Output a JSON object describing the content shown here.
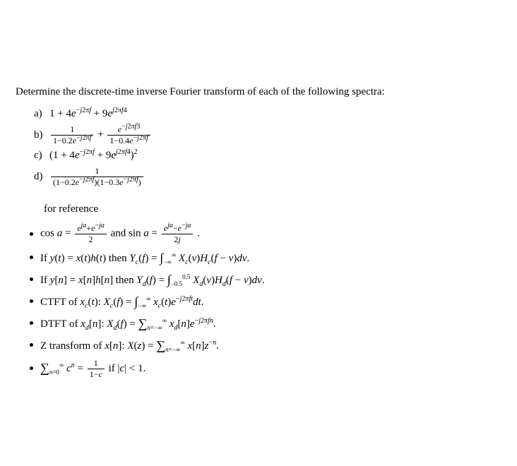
{
  "intro": "Determine the discrete-time inverse Fourier transform of each of the following spectra:",
  "problems": {
    "a": {
      "label": "a)",
      "expr_html": "1 + 4<i>e</i><sup>−<i>j</i>2π<i>f</i></sup> + 9<i>e</i><sup><i>j</i>2π<i>f</i>4</sup>"
    },
    "b": {
      "label": "b)",
      "frac1_num": "1",
      "frac1_den": "1−0.2<i>e</i><sup>−<i>j</i>2π<i>f</i></sup>",
      "plus": " + ",
      "frac2_num": "<i>e</i><sup>−<i>j</i>2π<i>f</i>3</sup>",
      "frac2_den": "1−0.4<i>e</i><sup>−<i>j</i>2π<i>f</i></sup>"
    },
    "c": {
      "label": "c)",
      "expr_html": "(1 + 4<i>e</i><sup>−<i>j</i>2π<i>f</i></sup> + 9<i>e</i><sup><i>j</i>2π<i>f</i>4</sup>)<sup>2</sup>"
    },
    "d": {
      "label": "d)",
      "frac_num": "1",
      "frac_den": "(1−0.2<i>e</i><sup>−<i>j</i>2π<i>f</i></sup>)(1−0.3<i>e</i><sup>−<i>j</i>2π<i>f</i></sup>)"
    }
  },
  "reference_header": "for reference",
  "ref": {
    "r1_a": "cos <i>a</i> = ",
    "r1_f1n": "<i>e</i><sup><i>ja</i></sup>+<i>e</i><sup>−<i>ja</i></sup>",
    "r1_f1d": "2",
    "r1_mid": " and sin <i>a</i> = ",
    "r1_f2n": "<i>e</i><sup><i>ja</i></sup>−<i>e</i><sup>−<i>ja</i></sup>",
    "r1_f2d": "2<i>j</i>",
    "r1_end": ".",
    "r2": "If <i>y</i>(<i>t</i>) = <i>x</i>(<i>t</i>)<i>h</i>(<i>t</i>) then <i>Y<sub>c</sub></i>(<i>f</i>) = <span class=\"int\">∫</span><sub class=\"ssub\">−∞</sub><sup class=\"ssub\">∞</sup> <i>X<sub>c</sub></i>(<i>v</i>)<i>H<sub>c</sub></i>(<i>f</i> − <i>v</i>)<i>dv</i>.",
    "r3": "If <i>y</i>[<i>n</i>] = <i>x</i>[<i>n</i>]<i>h</i>[<i>n</i>] then <i>Y<sub>d</sub></i>(<i>f</i>) = <span class=\"int\">∫</span><sub class=\"ssub\">−0.5</sub><sup class=\"ssub\">0.5</sup> <i>X<sub>d</sub></i>(<i>v</i>)<i>H<sub>d</sub></i>(<i>f</i> − <i>v</i>)<i>dv</i>.",
    "r4": "CTFT of <i>x<sub>c</sub></i>(<i>t</i>): <i>X<sub>c</sub></i>(<i>f</i>) = <span class=\"int\">∫</span><sub class=\"ssub\">−∞</sub><sup class=\"ssub\">∞</sup> <i>x<sub>c</sub></i>(<i>t</i>)<i>e</i><sup>−<i>j</i>2π<i>ft</i></sup><i>dt</i>.",
    "r5": "DTFT of <i>x<sub>d</sub></i>[<i>n</i>]: <i>X<sub>d</sub></i>(<i>f</i>) = <span class=\"sumsym\">∑</span><sub class=\"ssub\"><i>n</i>=−∞</sub><sup class=\"ssub\">∞</sup> <i>x<sub>d</sub></i>[<i>n</i>]<i>e</i><sup>−<i>j</i>2π<i>fn</i></sup>.",
    "r6": "Z transform of <i>x</i>[<i>n</i>]: <i>X</i>(<i>z</i>) = <span class=\"sumsym\">∑</span><sub class=\"ssub\"><i>n</i>=−∞</sub><sup class=\"ssub\">∞</sup> <i>x</i>[<i>n</i>]<i>z</i><sup>−<i>n</i></sup>.",
    "r7_a": "<span class=\"sumsym\">∑</span><sub class=\"ssub\"><i>n</i>=0</sub><sup class=\"ssub\">∞</sup> <i>c</i><sup><i>n</i></sup> = ",
    "r7_fn": "1",
    "r7_fd": "1−<i>c</i>",
    "r7_end": " if |<i>c</i>| &lt; 1."
  }
}
